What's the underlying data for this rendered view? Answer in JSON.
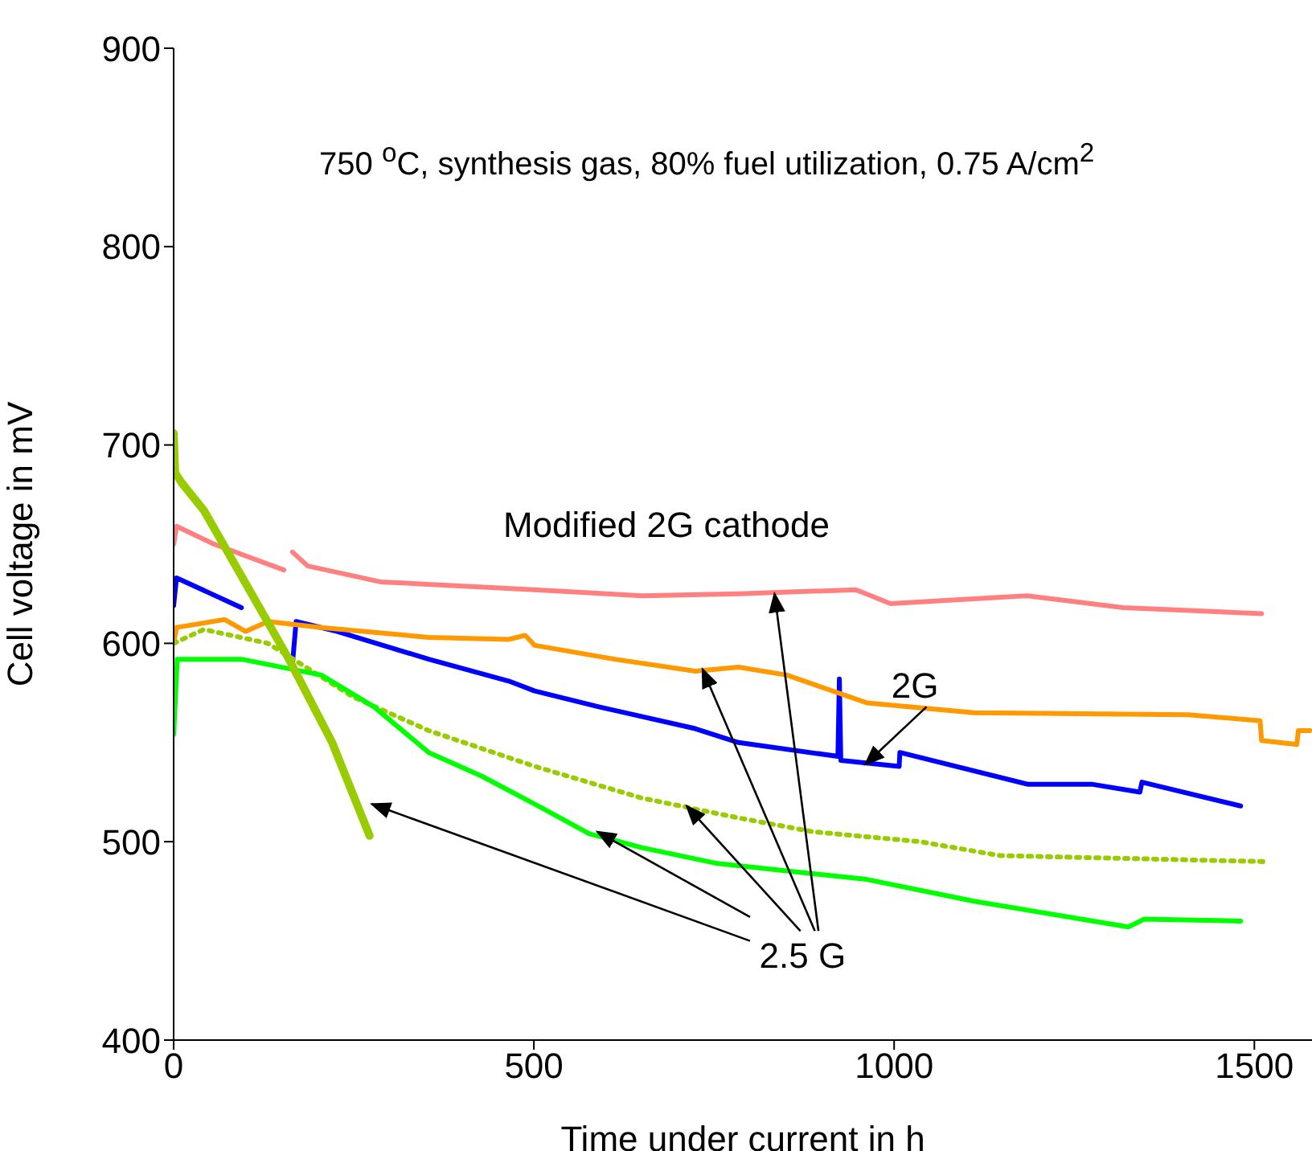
{
  "chart_data": {
    "type": "line",
    "xlabel": "Time under current in h",
    "ylabel": "Cell voltage in mV",
    "xlim": [
      0,
      1580
    ],
    "xticks": [
      0,
      500,
      1000,
      1500
    ],
    "ylim": [
      400,
      900
    ],
    "yticks": [
      400,
      500,
      600,
      700,
      800,
      900
    ],
    "marker": "none",
    "line_style": "solid",
    "annotations": [
      "750 $^{o}$C, synthesis gas, 80% fuel utilization, 0.75 A/cm$^{2}$",
      "Modified 2G cathode",
      {
        "text": "2G",
        "x": 960,
        "y": 539
      },
      {
        "text": "2.5 G",
        "x": 588,
        "y": 505
      }
    ],
    "series": [
      {
        "color": "#ff8080",
        "x": [
          0,
          4,
          56,
          153,
          159,
          165,
          186,
          287,
          501,
          650,
          784,
          947,
          995,
          1185,
          1318,
          1510
        ],
        "values": [
          650,
          659,
          650,
          637,
          null,
          646,
          639,
          631,
          627,
          624,
          625,
          627,
          620,
          624,
          618,
          615
        ]
      },
      {
        "color": "#0000ff",
        "x": [
          0,
          4,
          94,
          130,
          165,
          170,
          227,
          354,
          465,
          501,
          590,
          724,
          784,
          922,
          924,
          926,
          1007,
          1008,
          1185,
          1274,
          1341,
          1344,
          1481
        ],
        "values": [
          619,
          633,
          618,
          null,
          590,
          611,
          606,
          592,
          581,
          576,
          568,
          557,
          550,
          543,
          582,
          541,
          538,
          545,
          529,
          529,
          525,
          530,
          518
        ]
      },
      {
        "color": "#ff9900",
        "x": [
          0,
          4,
          71,
          100,
          131,
          205,
          354,
          465,
          488,
          501,
          612,
          724,
          784,
          851,
          962,
          1111,
          1408,
          1508,
          1510,
          1559,
          1561,
          1577
        ],
        "values": [
          600,
          608,
          612,
          606,
          611,
          608,
          603,
          602,
          604,
          599,
          592,
          586,
          588,
          584,
          570,
          565,
          564,
          561,
          551,
          549,
          556,
          556
        ]
      },
      {
        "color": "#99cc00",
        "line_style": "dotted",
        "x": [
          0,
          42,
          131,
          249,
          354,
          501,
          650,
          784,
          888,
          1036,
          1147,
          1512
        ],
        "values": [
          600,
          607,
          600,
          573,
          556,
          538,
          522,
          512,
          505,
          500,
          493,
          490
        ]
      },
      {
        "color": "#00ff00",
        "x": [
          0,
          5,
          94,
          205,
          278,
          354,
          428,
          501,
          577,
          650,
          755,
          962,
          1111,
          1325,
          1347,
          1481
        ],
        "values": [
          554,
          592,
          592,
          584,
          568,
          545,
          533,
          519,
          504,
          497,
          489,
          481,
          470,
          457,
          461,
          460
        ]
      },
      {
        "color": "#99cc00",
        "x": [
          0,
          2,
          11,
          42,
          94,
          160,
          220,
          272
        ],
        "values": [
          706,
          686,
          681,
          667,
          634,
          592,
          550,
          503
        ]
      }
    ]
  }
}
